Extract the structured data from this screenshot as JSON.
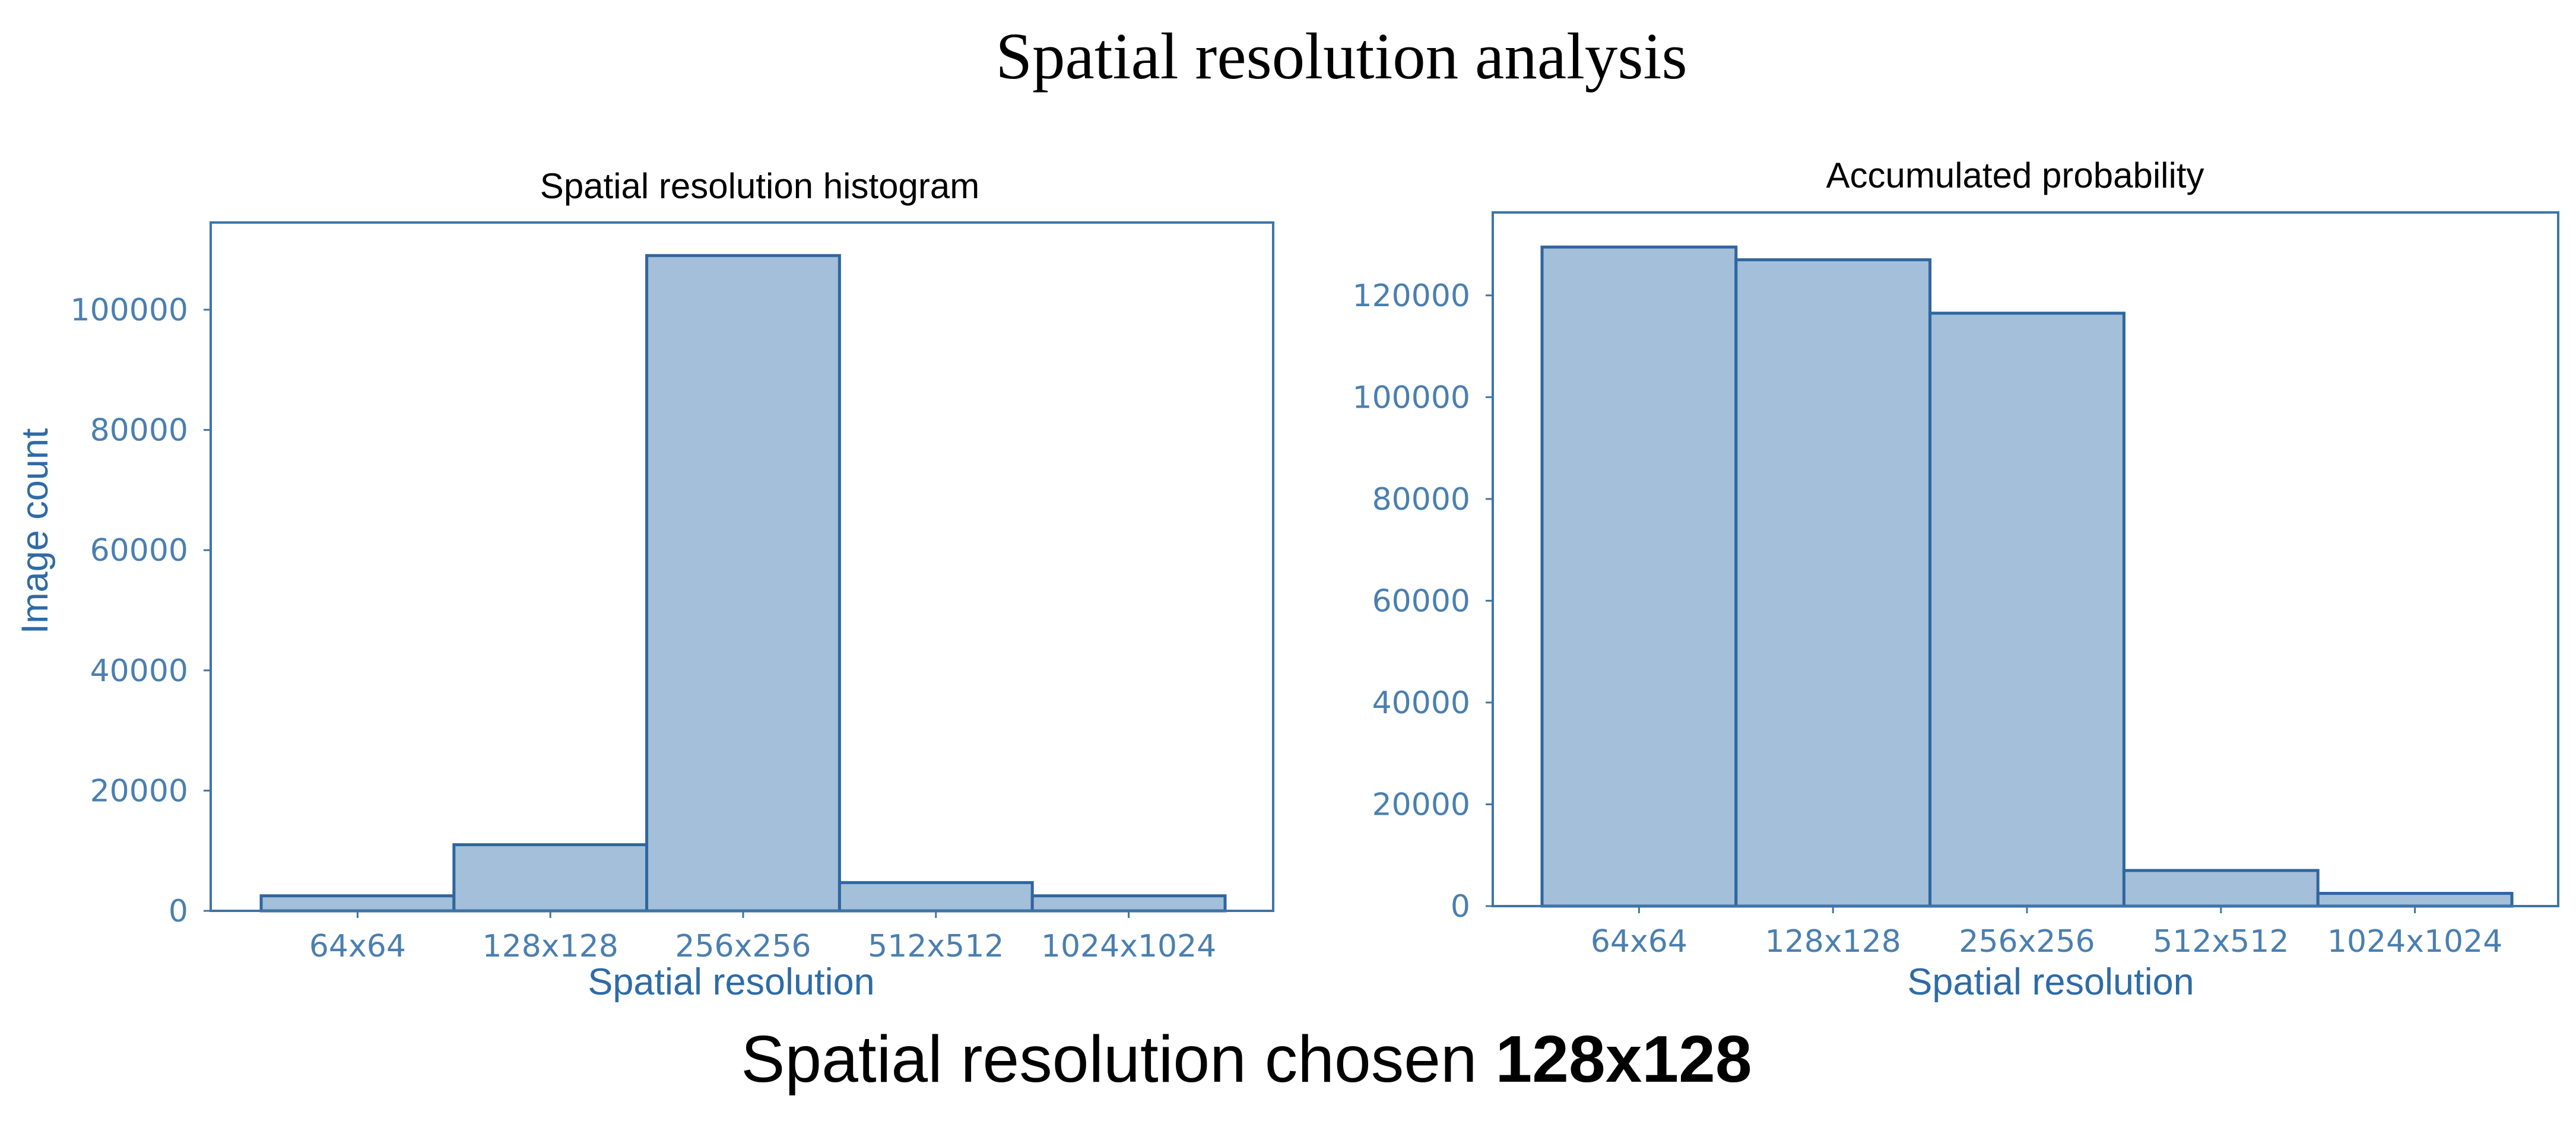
{
  "title": "Spatial resolution analysis",
  "footer": {
    "prefix": "Spatial resolution chosen ",
    "value": "128x128"
  },
  "colors": {
    "bar_fill": "#a3bfd9",
    "bar_edge": "#2f66a0",
    "axis": "#3d75a8",
    "tick_text": "#4a7fb0",
    "axis_label": "#2e6ba6"
  },
  "chart_data": [
    {
      "type": "bar",
      "title": "Spatial resolution histogram",
      "xlabel": "Spatial resolution",
      "ylabel": "Image count",
      "categories": [
        "64x64",
        "128x128",
        "256x256",
        "512x512",
        "1024x1024"
      ],
      "values": [
        2500,
        11000,
        109000,
        4700,
        2500
      ],
      "ylim": [
        0,
        114500
      ],
      "yticks": [
        0,
        20000,
        40000,
        60000,
        80000,
        100000
      ],
      "grid": false
    },
    {
      "type": "bar",
      "title": "Accumulated probability",
      "xlabel": "Spatial resolution",
      "ylabel": "",
      "categories": [
        "64x64",
        "128x128",
        "256x256",
        "512x512",
        "1024x1024"
      ],
      "values": [
        129500,
        127000,
        116500,
        7000,
        2500
      ],
      "ylim": [
        0,
        136300
      ],
      "yticks": [
        0,
        20000,
        40000,
        60000,
        80000,
        100000,
        120000
      ],
      "grid": false
    }
  ]
}
